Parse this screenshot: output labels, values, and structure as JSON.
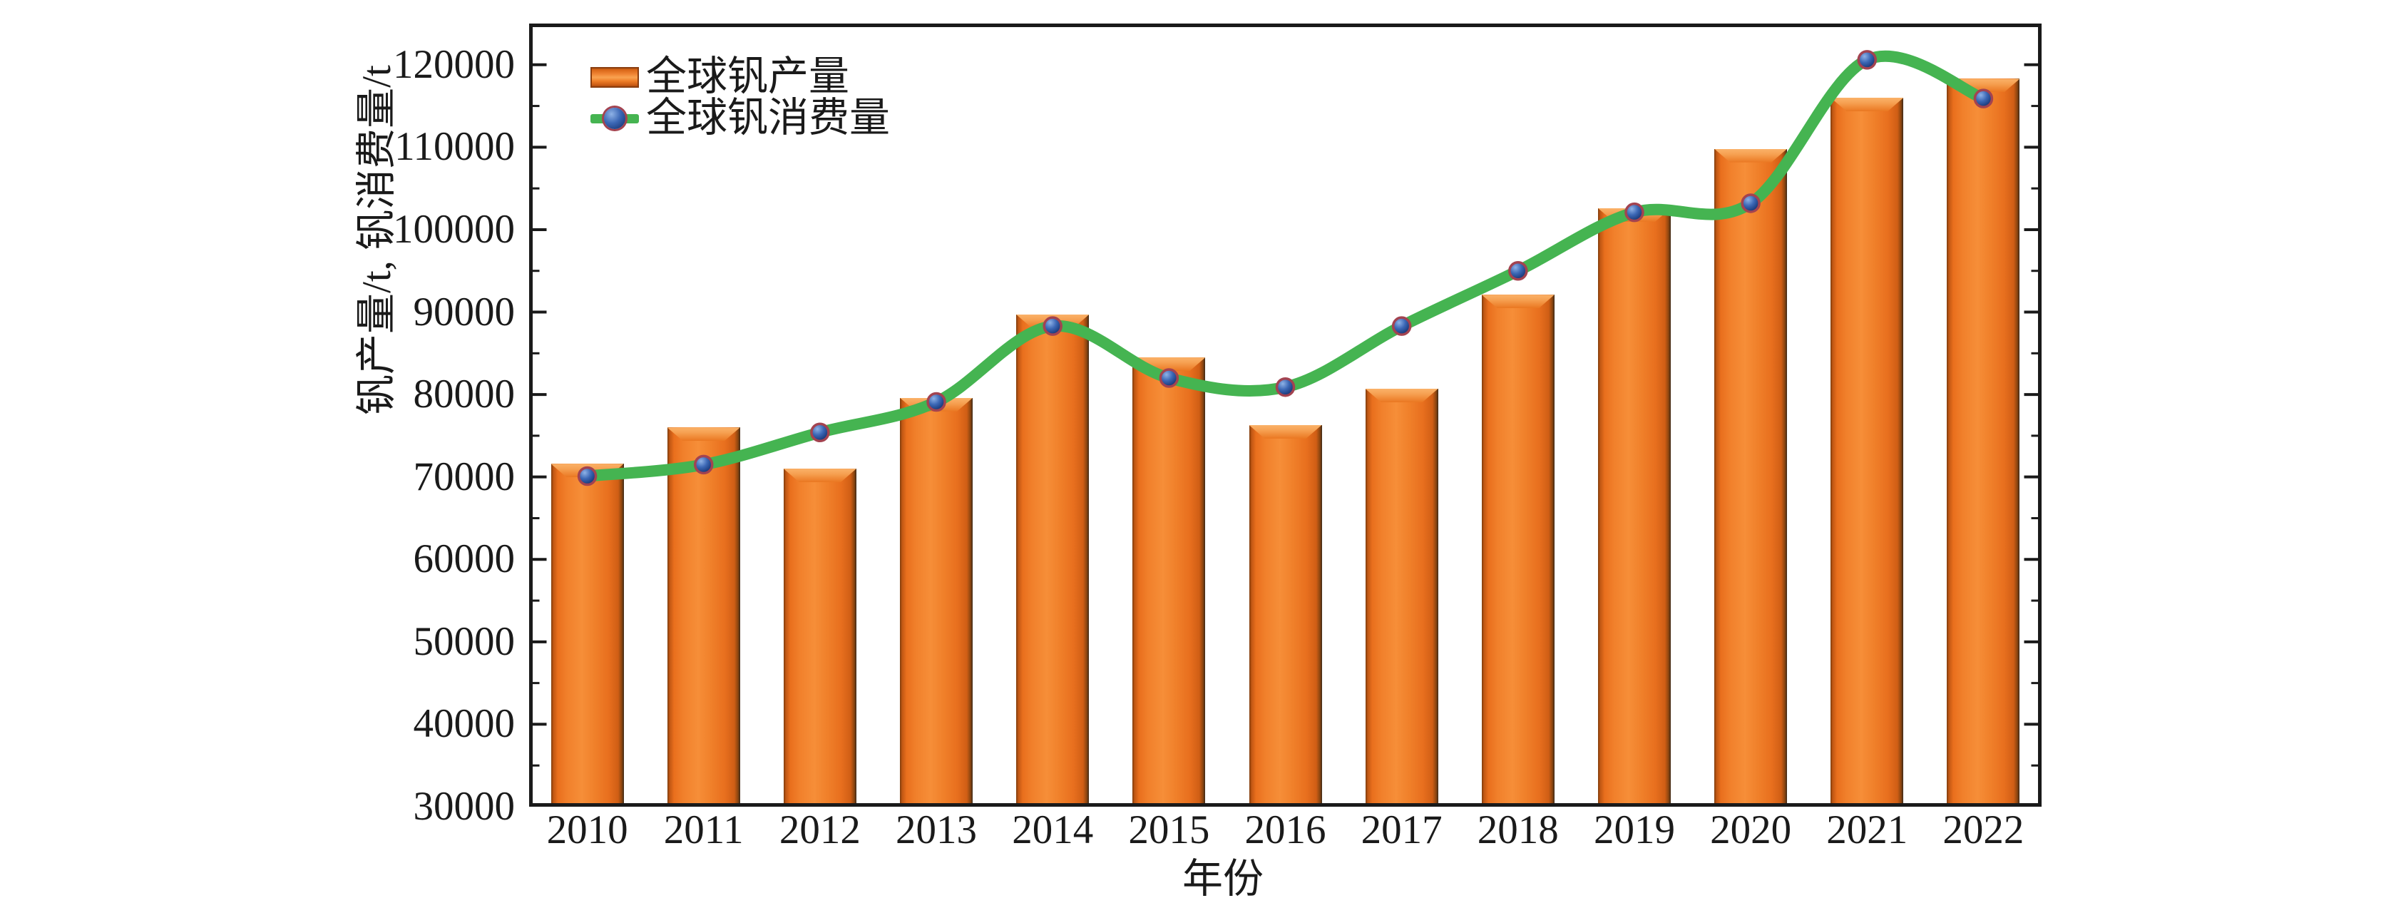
{
  "chart_data": {
    "type": "bar+line",
    "title": "",
    "categories": [
      "2010",
      "2011",
      "2012",
      "2013",
      "2014",
      "2015",
      "2016",
      "2017",
      "2018",
      "2019",
      "2020",
      "2021",
      "2022"
    ],
    "series": [
      {
        "name": "全球钒产量",
        "type": "bar",
        "color": "#EC7420",
        "values": [
          71600,
          76000,
          71000,
          79600,
          89700,
          84500,
          76300,
          80700,
          92100,
          102600,
          109800,
          116000,
          118300
        ]
      },
      {
        "name": "全球钒消费量",
        "type": "line",
        "color": "#45B451",
        "marker_color": "#3B67B5",
        "marker_ring_color": "#A34350",
        "values": [
          70100,
          71500,
          75400,
          79100,
          88300,
          82000,
          80900,
          88300,
          95000,
          102100,
          103200,
          120600,
          115900
        ]
      }
    ],
    "xlabel": "年份",
    "ylabel": "钒产量/t, 钒消费量/t",
    "ylim": [
      30000,
      125000
    ],
    "yticks": [
      30000,
      40000,
      50000,
      60000,
      70000,
      80000,
      90000,
      100000,
      110000,
      120000
    ],
    "ytick_minor_step": 5000,
    "grid": false,
    "legend_position": "top-left-inside",
    "axis_color": "#1a1a1a",
    "background": "#ffffff"
  }
}
